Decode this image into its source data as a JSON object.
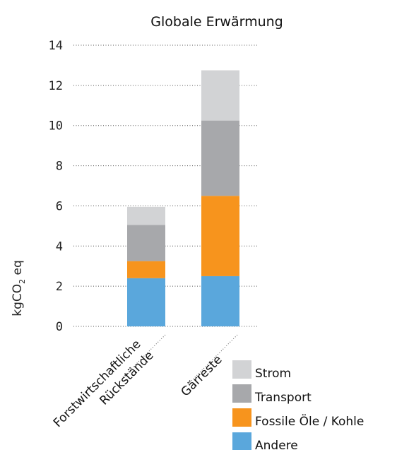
{
  "chart_data": {
    "type": "bar",
    "stacked": true,
    "title": "Globale Erwärmung",
    "ylabel_main": "kgCO",
    "ylabel_sub": "2",
    "ylabel_tail": " eq",
    "ylim": [
      0,
      14
    ],
    "yticks": [
      0,
      2,
      4,
      6,
      8,
      10,
      12,
      14
    ],
    "grid": true,
    "categories": [
      {
        "lines": [
          "Forstwirtschaftliche",
          "Rückstände"
        ]
      },
      {
        "lines": [
          "Gärreste"
        ]
      }
    ],
    "series": [
      {
        "name": "Andere",
        "color": "#5aa7dc",
        "values": [
          2.4,
          2.5
        ]
      },
      {
        "name": "Fossile Öle / Kohle",
        "color": "#f7941d",
        "values": [
          0.85,
          4.0
        ]
      },
      {
        "name": "Transport",
        "color": "#a7a8ab",
        "values": [
          1.8,
          3.75
        ]
      },
      {
        "name": "Strom",
        "color": "#d2d3d5",
        "values": [
          0.9,
          2.5
        ]
      }
    ],
    "legend_position": "bottom-right"
  }
}
